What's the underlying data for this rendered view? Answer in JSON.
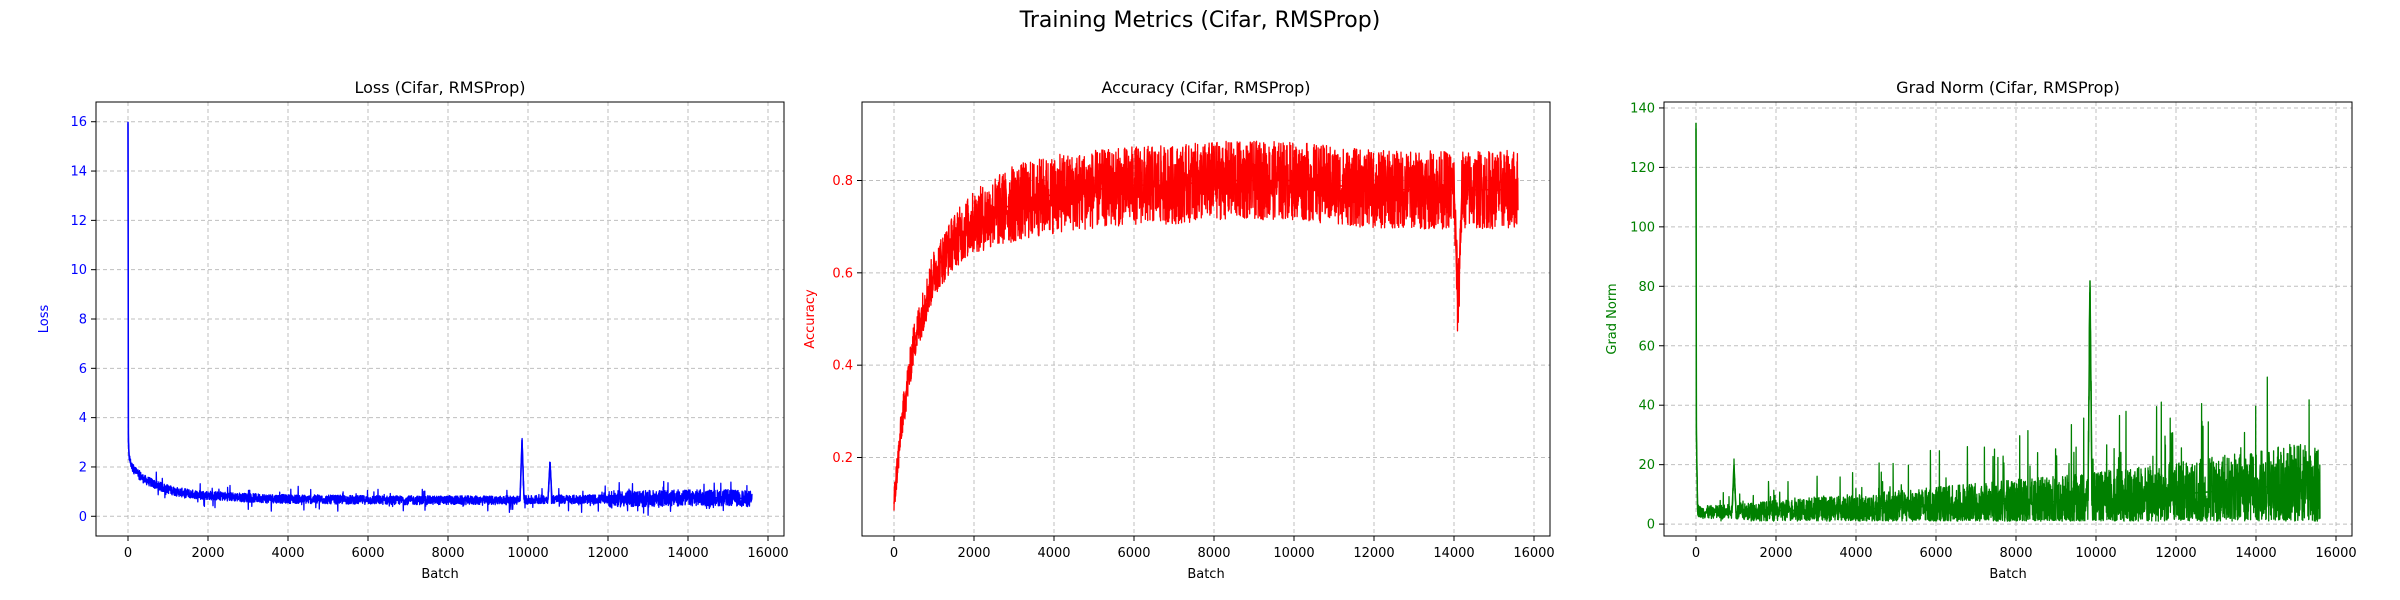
{
  "figure": {
    "suptitle": "Training Metrics (Cifar, RMSProp)"
  },
  "chart_data": [
    {
      "type": "line",
      "title": "Loss (Cifar, RMSProp)",
      "xlabel": "Batch",
      "ylabel": "Loss",
      "color": "#0000ff",
      "xlim": [
        -800,
        16400
      ],
      "ylim": [
        -0.8,
        16.8
      ],
      "xticks": [
        0,
        2000,
        4000,
        6000,
        8000,
        10000,
        12000,
        14000,
        16000
      ],
      "yticks": [
        0,
        2,
        4,
        6,
        8,
        10,
        12,
        14,
        16
      ],
      "grid": true,
      "series": [
        {
          "x": [
            0,
            10,
            30,
            60,
            100,
            200,
            400,
            800,
            1200,
            1600,
            2000,
            2500,
            3000,
            4000,
            5000,
            6000,
            7000,
            8000,
            9000,
            9800,
            9850,
            9900,
            10000,
            10500,
            10550,
            10600,
            11000,
            12000,
            13000,
            14000,
            15000,
            15600
          ],
          "y": [
            16.0,
            3.0,
            2.4,
            2.2,
            2.0,
            1.8,
            1.5,
            1.2,
            1.0,
            0.9,
            0.85,
            0.8,
            0.75,
            0.7,
            0.68,
            0.66,
            0.65,
            0.65,
            0.65,
            0.65,
            3.1,
            0.7,
            0.65,
            0.7,
            2.2,
            0.7,
            0.68,
            0.7,
            0.72,
            0.75,
            0.75,
            0.7
          ]
        }
      ]
    },
    {
      "type": "line",
      "title": "Accuracy (Cifar, RMSProp)",
      "xlabel": "Batch",
      "ylabel": "Accuracy",
      "color": "#ff0000",
      "xlim": [
        -800,
        16400
      ],
      "ylim": [
        0.03,
        0.97
      ],
      "xticks": [
        0,
        2000,
        4000,
        6000,
        8000,
        10000,
        12000,
        14000,
        16000
      ],
      "yticks": [
        0.2,
        0.4,
        0.6,
        0.8
      ],
      "grid": true,
      "series": [
        {
          "x": [
            0,
            50,
            200,
            500,
            1000,
            1500,
            2000,
            3000,
            4000,
            5000,
            6000,
            7000,
            8000,
            9000,
            10000,
            11000,
            12000,
            13000,
            14000,
            14100,
            14200,
            15000,
            15600
          ],
          "y": [
            0.1,
            0.15,
            0.28,
            0.45,
            0.6,
            0.67,
            0.71,
            0.75,
            0.77,
            0.78,
            0.79,
            0.79,
            0.8,
            0.8,
            0.8,
            0.79,
            0.78,
            0.78,
            0.78,
            0.52,
            0.78,
            0.78,
            0.78
          ]
        }
      ]
    },
    {
      "type": "line",
      "title": "Grad Norm (Cifar, RMSProp)",
      "xlabel": "Batch",
      "ylabel": "Grad Norm",
      "color": "#008000",
      "xlim": [
        -800,
        16400
      ],
      "ylim": [
        -4,
        142
      ],
      "xticks": [
        0,
        2000,
        4000,
        6000,
        8000,
        10000,
        12000,
        14000,
        16000
      ],
      "yticks": [
        0,
        20,
        40,
        60,
        80,
        100,
        120,
        140
      ],
      "grid": true,
      "series": [
        {
          "x": [
            0,
            10,
            40,
            100,
            500,
            900,
            950,
            1000,
            2000,
            4000,
            6000,
            8000,
            9800,
            9850,
            9900,
            10000,
            11000,
            12000,
            13000,
            14000,
            14500,
            15000,
            15600
          ],
          "y": [
            135,
            30,
            5,
            4,
            4,
            4,
            20,
            4,
            4.5,
            5,
            6,
            7,
            8,
            82,
            8,
            8,
            9,
            10,
            11,
            12,
            13,
            14,
            12
          ]
        }
      ]
    }
  ]
}
